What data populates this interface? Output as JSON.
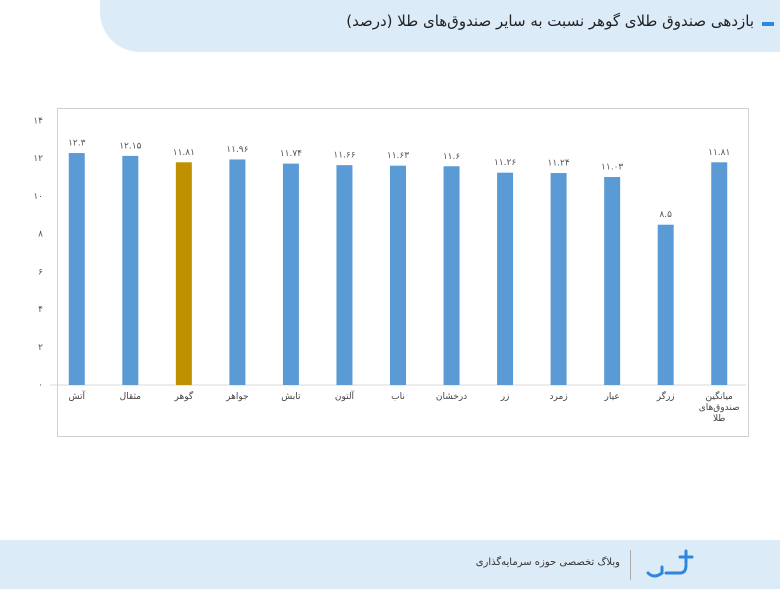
{
  "header": {
    "title": "بازدهی صندوق طلای گوهر نسبت به سایر صندوق‌های طلا (درصد)"
  },
  "chart_data": {
    "type": "bar",
    "categories": [
      "آتش",
      "مثقال",
      "گوهر",
      "جواهر",
      "تابش",
      "آلتون",
      "ناب",
      "درخشان",
      "زر",
      "زمرد",
      "عیار",
      "زرگر",
      "میانگین صندوق‌های طلا"
    ],
    "values": [
      12.3,
      12.15,
      11.81,
      11.96,
      11.74,
      11.66,
      11.63,
      11.6,
      11.26,
      11.24,
      11.03,
      8.5,
      11.81
    ],
    "value_labels": [
      "۱۲.۳",
      "۱۲.۱۵",
      "۱۱.۸۱",
      "۱۱.۹۶",
      "۱۱.۷۴",
      "۱۱.۶۶",
      "۱۱.۶۳",
      "۱۱.۶",
      "۱۱.۲۶",
      "۱۱.۲۴",
      "۱۱.۰۳",
      "۸.۵",
      "۱۱.۸۱"
    ],
    "colors": [
      "#5b9bd5",
      "#5b9bd5",
      "#bf9000",
      "#5b9bd5",
      "#5b9bd5",
      "#5b9bd5",
      "#5b9bd5",
      "#5b9bd5",
      "#5b9bd5",
      "#5b9bd5",
      "#5b9bd5",
      "#5b9bd5",
      "#5b9bd5"
    ],
    "ylim": [
      0,
      14
    ],
    "yticks": [
      {
        "value": 0,
        "label": "۰"
      },
      {
        "value": 2,
        "label": "۲"
      },
      {
        "value": 4,
        "label": "۴"
      },
      {
        "value": 6,
        "label": "۶"
      },
      {
        "value": 8,
        "label": "۸"
      },
      {
        "value": 10,
        "label": "۱۰"
      },
      {
        "value": 12,
        "label": "۱۲"
      },
      {
        "value": 14,
        "label": "۱۴"
      }
    ],
    "grid": false
  },
  "footer": {
    "tagline": "وبلاگ تخصصی حوزه سرمایه‌گذاری"
  }
}
